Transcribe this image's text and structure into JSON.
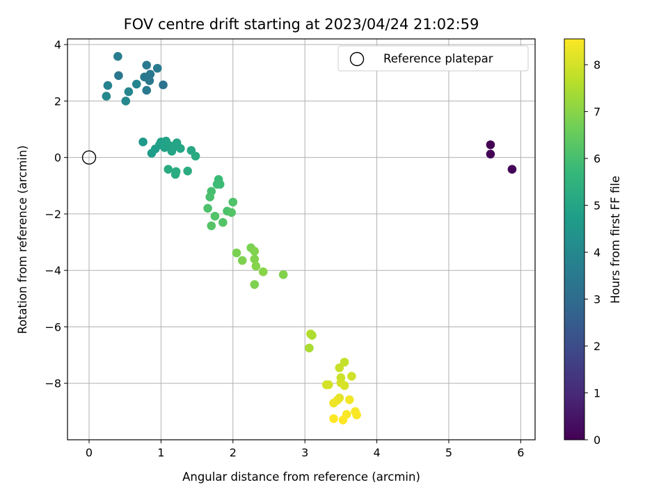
{
  "chart_data": {
    "type": "scatter",
    "title": "FOV centre drift starting at 2023/04/24 21:02:59",
    "xlabel": "Angular distance from reference (arcmin)",
    "ylabel": "Rotation from reference (arcmin)",
    "xlim": [
      -0.3,
      6.2
    ],
    "ylim": [
      -10.0,
      4.2
    ],
    "xticks": [
      0,
      1,
      2,
      3,
      4,
      5,
      6
    ],
    "yticks": [
      -8,
      -6,
      -4,
      -2,
      0,
      2,
      4
    ],
    "xtick_labels": [
      "0",
      "1",
      "2",
      "3",
      "4",
      "5",
      "6"
    ],
    "ytick_labels": [
      "−8",
      "−6",
      "−4",
      "−2",
      "0",
      "2",
      "4"
    ],
    "grid": true,
    "legend": {
      "position": "top-right",
      "entries": [
        {
          "label": "Reference platepar",
          "marker": "open-circle",
          "x": 0,
          "y": 0
        }
      ]
    },
    "colorbar": {
      "label": "Hours from first FF file",
      "range": [
        0,
        8.55
      ],
      "ticks": [
        0,
        1,
        2,
        3,
        4,
        5,
        6,
        7,
        8
      ],
      "tick_labels": [
        "0",
        "1",
        "2",
        "3",
        "4",
        "5",
        "6",
        "7",
        "8"
      ],
      "colormap": [
        "#440154",
        "#482878",
        "#3e4989",
        "#31688e",
        "#26828e",
        "#1f9e89",
        "#35b779",
        "#6ece58",
        "#b5de2b",
        "#fde725"
      ]
    },
    "series": [
      {
        "x": [
          5.58,
          5.58,
          5.88
        ],
        "y": [
          0.45,
          0.12,
          -0.42
        ],
        "hours": [
          0.0,
          0.05,
          0.1
        ]
      },
      {
        "x": [
          0.4,
          0.8,
          0.95,
          0.77,
          0.85,
          0.41,
          0.84,
          0.26,
          0.66,
          0.8,
          0.55,
          1.03,
          0.24,
          0.51
        ],
        "y": [
          3.58,
          3.27,
          3.16,
          2.85,
          2.95,
          2.9,
          2.72,
          2.55,
          2.6,
          2.38,
          2.33,
          2.57,
          2.17,
          2.0
        ],
        "hours": [
          3.6,
          3.5,
          3.5,
          3.45,
          3.45,
          3.4,
          3.4,
          3.8,
          3.9,
          3.5,
          3.95,
          3.3,
          4.0,
          4.0
        ]
      },
      {
        "x": [
          0.75,
          0.87,
          0.92,
          0.98,
          1.0,
          1.07,
          1.12,
          1.15,
          1.17,
          1.22,
          1.27,
          1.2,
          1.42,
          1.48,
          1.05,
          1.1,
          1.2,
          1.37,
          1.21
        ],
        "y": [
          0.55,
          0.15,
          0.3,
          0.45,
          0.55,
          0.58,
          0.42,
          0.22,
          0.35,
          0.52,
          0.32,
          0.4,
          0.25,
          0.05,
          0.35,
          -0.42,
          -0.6,
          -0.48,
          -0.5
        ],
        "hours": [
          4.6,
          4.7,
          4.75,
          4.8,
          4.85,
          4.9,
          4.95,
          5.0,
          5.0,
          5.0,
          5.05,
          5.0,
          5.1,
          5.2,
          4.9,
          5.2,
          5.3,
          5.3,
          5.25
        ]
      },
      {
        "x": [
          1.8,
          1.82,
          1.78,
          1.7,
          1.68,
          1.65,
          2.0,
          1.75,
          1.92,
          1.98,
          1.7,
          1.86
        ],
        "y": [
          -0.78,
          -0.95,
          -0.95,
          -1.2,
          -1.4,
          -1.8,
          -1.58,
          -2.08,
          -1.9,
          -1.95,
          -2.42,
          -2.3
        ],
        "hours": [
          5.8,
          5.8,
          5.85,
          6.0,
          6.05,
          6.1,
          6.15,
          6.2,
          6.1,
          6.2,
          6.25,
          6.2
        ]
      },
      {
        "x": [
          2.25,
          2.05,
          2.3,
          2.13,
          2.3,
          2.32,
          2.42,
          2.7,
          2.3
        ],
        "y": [
          -3.2,
          -3.38,
          -3.32,
          -3.65,
          -3.6,
          -3.85,
          -4.05,
          -4.15,
          -4.5
        ],
        "hours": [
          6.8,
          6.8,
          6.9,
          6.85,
          6.9,
          6.95,
          7.0,
          6.9,
          6.85
        ]
      },
      {
        "x": [
          3.08,
          3.1,
          3.06,
          3.55,
          3.48,
          3.5,
          3.65,
          3.3,
          3.33,
          3.5,
          3.55,
          3.48,
          3.45,
          3.4,
          3.62,
          3.7,
          3.58,
          3.72,
          3.4,
          3.53
        ],
        "y": [
          -6.25,
          -6.3,
          -6.75,
          -7.25,
          -7.45,
          -7.8,
          -7.75,
          -8.05,
          -8.05,
          -7.98,
          -8.08,
          -8.52,
          -8.6,
          -8.7,
          -8.58,
          -9.0,
          -9.1,
          -9.12,
          -9.25,
          -9.3
        ],
        "hours": [
          7.6,
          7.5,
          7.45,
          7.8,
          7.85,
          7.9,
          7.95,
          8.0,
          8.0,
          8.0,
          8.05,
          8.2,
          8.3,
          8.35,
          8.4,
          8.45,
          8.5,
          8.5,
          8.55,
          8.55
        ]
      }
    ]
  }
}
